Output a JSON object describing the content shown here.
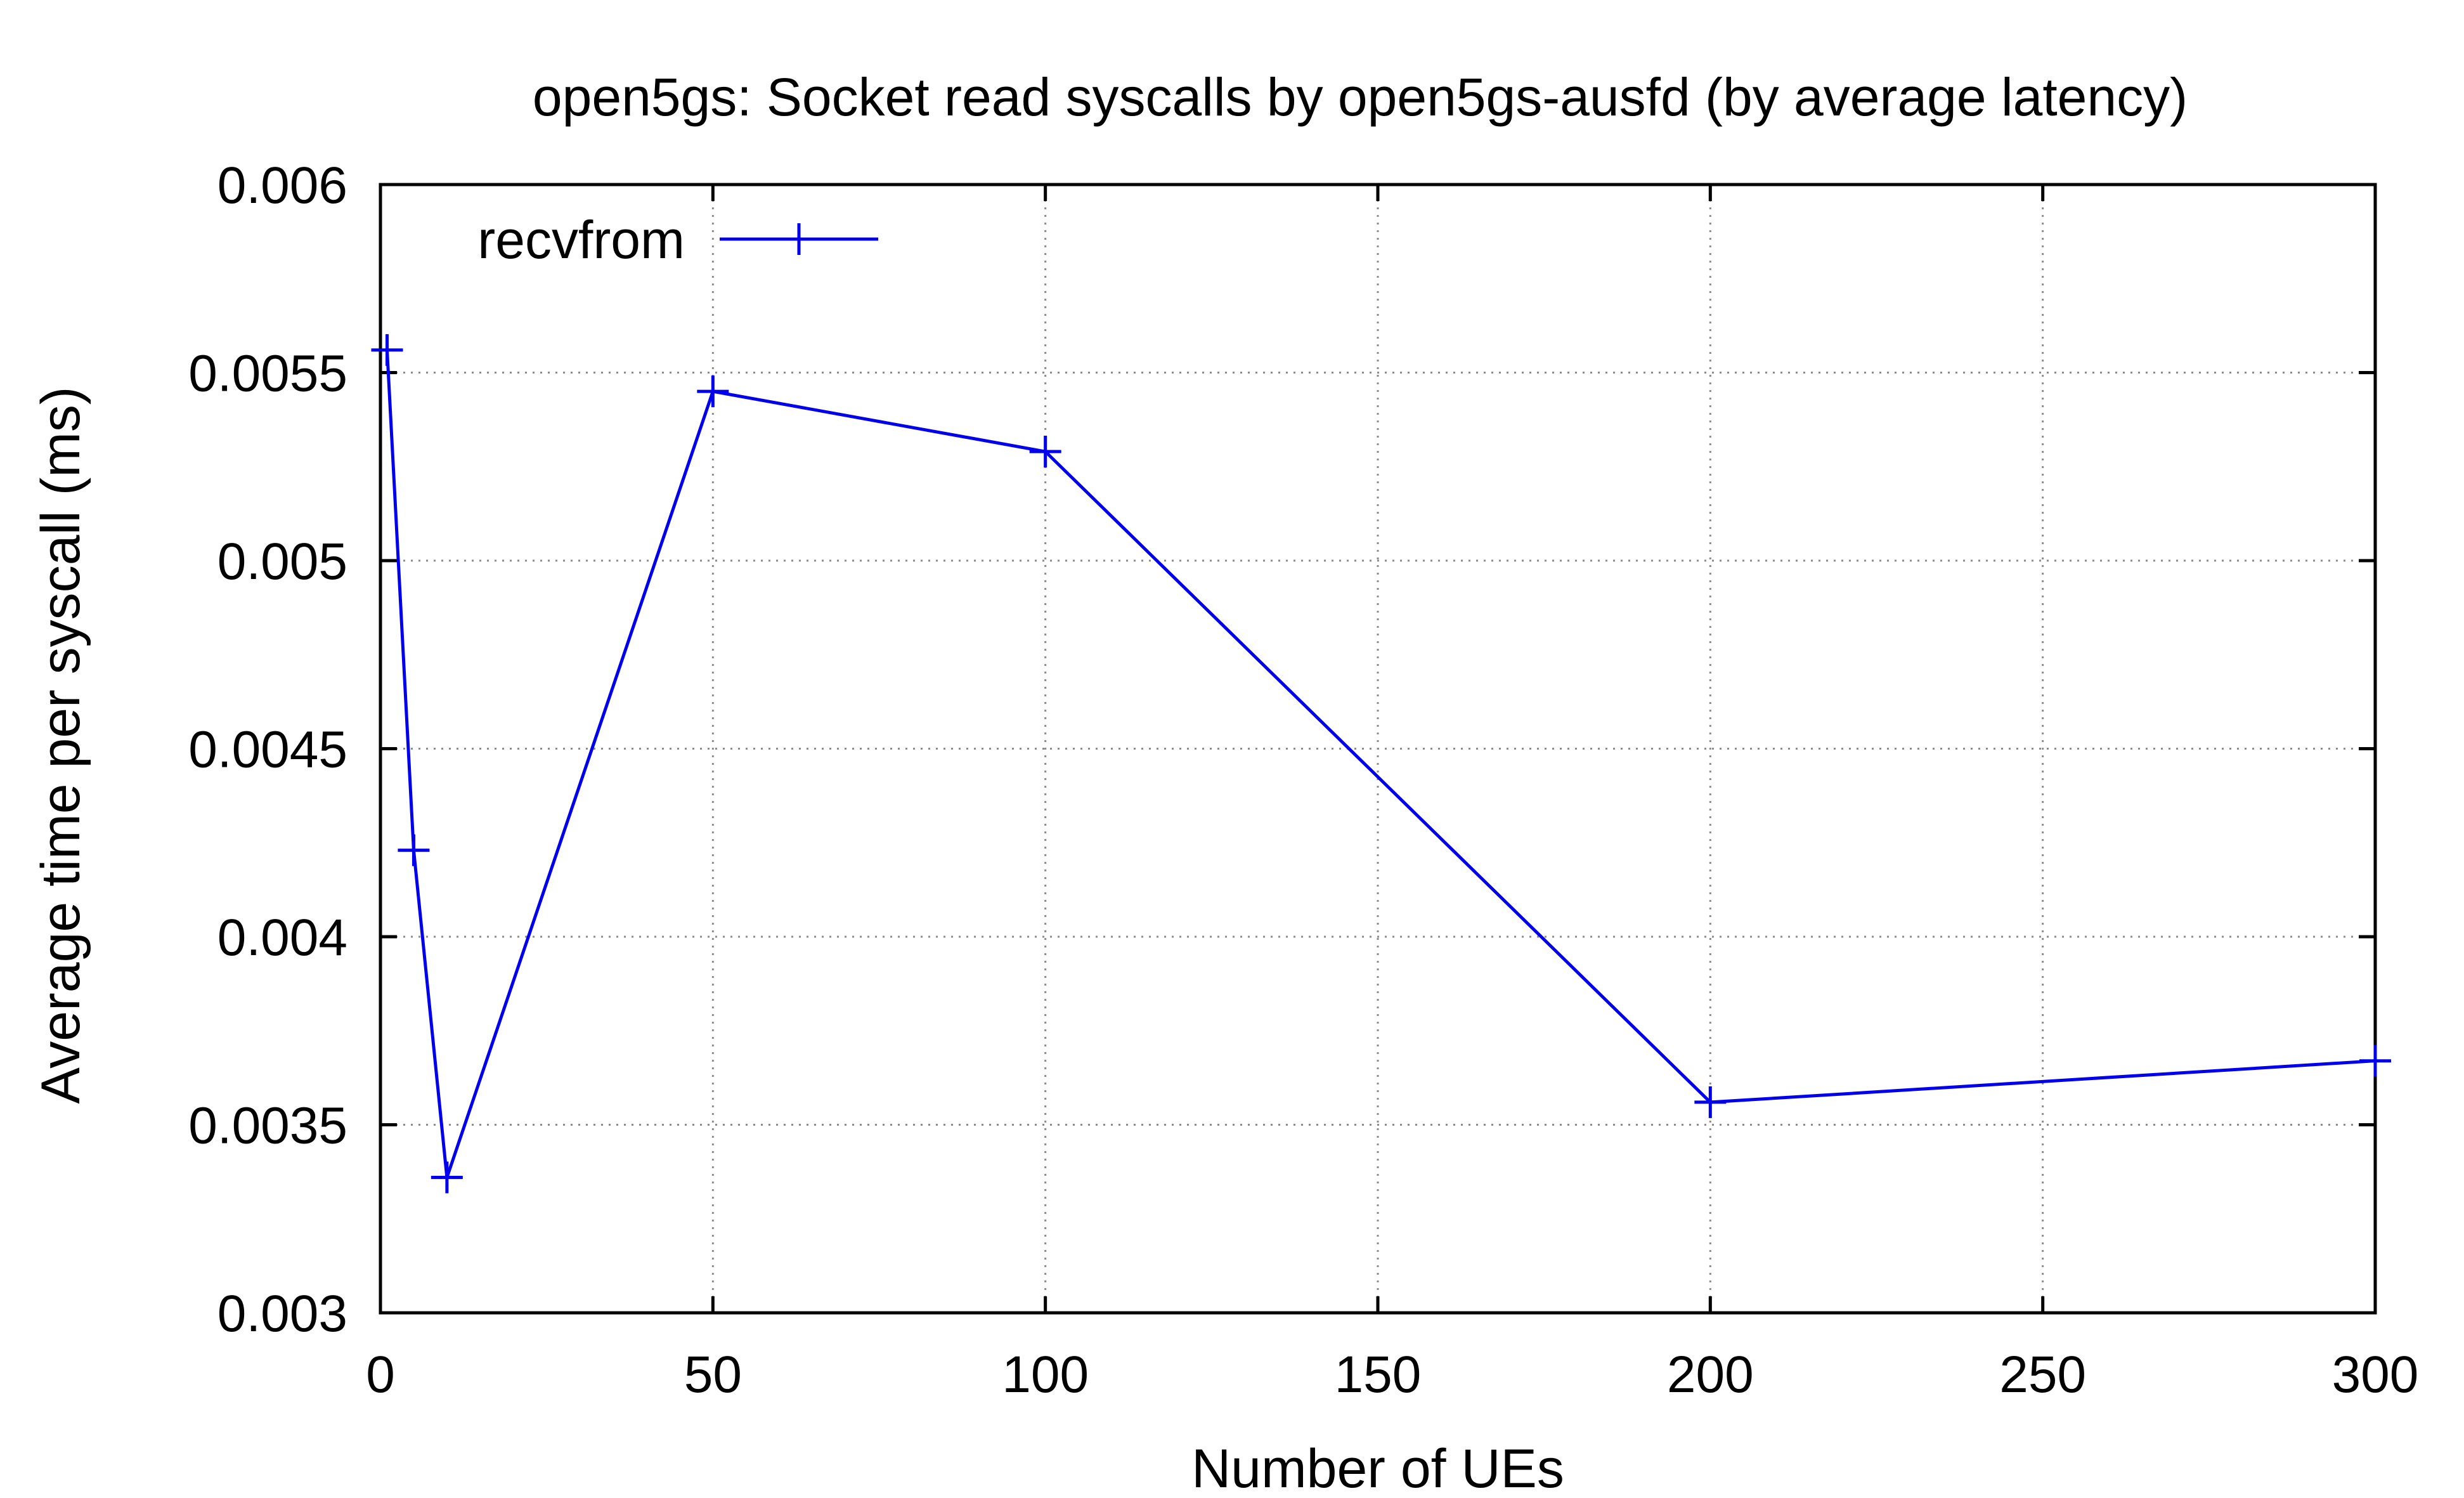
{
  "chart_data": {
    "type": "line",
    "title": "open5gs: Socket read syscalls by open5gs-ausfd (by average latency)",
    "xlabel": "Number of UEs",
    "ylabel": "Average time per syscall (ms)",
    "xlim": [
      0,
      300
    ],
    "ylim": [
      0.003,
      0.006
    ],
    "xticks": [
      0,
      50,
      100,
      150,
      200,
      250,
      300
    ],
    "xtick_labels": [
      "0",
      "50",
      "100",
      "150",
      "200",
      "250",
      "300"
    ],
    "yticks": [
      0.003,
      0.0035,
      0.004,
      0.0045,
      0.005,
      0.0055,
      0.006
    ],
    "ytick_labels": [
      "0.003",
      "0.0035",
      "0.004",
      "0.0045",
      "0.005",
      "0.0055",
      "0.006"
    ],
    "grid": true,
    "legend": "top-left",
    "series": [
      {
        "name": "recvfrom",
        "color": "#0000ee",
        "marker": "plus",
        "x": [
          1,
          5,
          10,
          50,
          100,
          200,
          300
        ],
        "y": [
          0.00556,
          0.00423,
          0.00336,
          0.00545,
          0.00529,
          0.00356,
          0.00367
        ]
      }
    ]
  }
}
